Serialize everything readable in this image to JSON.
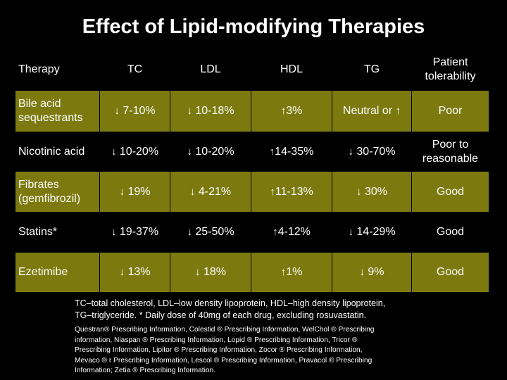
{
  "title": "Effect of Lipid-modifying Therapies",
  "colors": {
    "background": "#000000",
    "olive_row": "#7c7a0f",
    "text": "#ffffff"
  },
  "arrows": {
    "down": "↓",
    "up": "↑"
  },
  "table": {
    "headers": {
      "therapy": "Therapy",
      "tc": "TC",
      "ldl": "LDL",
      "hdl": "HDL",
      "tg": "TG",
      "tolerability_1": "Patient",
      "tolerability_2": "tolerability"
    },
    "rows": [
      {
        "therapy_1": "Bile acid",
        "therapy_2": "sequestrants",
        "tc": "7-10%",
        "ldl": "10-18%",
        "hdl": "3%",
        "tg": "Neutral or",
        "tolerability_1": "Poor",
        "tolerability_2": ""
      },
      {
        "therapy_1": "Nicotinic acid",
        "therapy_2": "",
        "tc": "10-20%",
        "ldl": "10-20%",
        "hdl": "14-35%",
        "tg": "30-70%",
        "tolerability_1": "Poor to",
        "tolerability_2": "reasonable"
      },
      {
        "therapy_1": "Fibrates",
        "therapy_2": "(gemfibrozil)",
        "tc": "19%",
        "ldl": "4-21%",
        "hdl": "11-13%",
        "tg": "30%",
        "tolerability_1": "Good",
        "tolerability_2": ""
      },
      {
        "therapy_1": "Statins*",
        "therapy_2": "",
        "tc": "19-37%",
        "ldl": "25-50%",
        "hdl": "4-12%",
        "tg": "14-29%",
        "tolerability_1": "Good",
        "tolerability_2": ""
      },
      {
        "therapy_1": "Ezetimibe",
        "therapy_2": "",
        "tc": "13%",
        "ldl": "18%",
        "hdl": "1%",
        "tg": "9%",
        "tolerability_1": "Good",
        "tolerability_2": ""
      }
    ]
  },
  "footnote_line1": "TC–total cholesterol, LDL–low density lipoprotein, HDL–high density lipoprotein,",
  "footnote_line2": "TG–triglyceride. * Daily dose of 40mg of each drug, excluding rosuvastatin.",
  "references": [
    "Questran® Prescribing Information, Colestid ® Prescribing Information, WelChol ® Prescribing",
    "information, Niaspan ® Prescribing Information, Lopid ® Prescribing Information, Tricor ®",
    "Prescribing Information, Lipitor ® Prescribing Information, Zocor ® Prescribing Information,",
    "Mevaco ® r Prescribing Information, Lescol ® Prescribing Information, Pravacol ® Prescribing",
    "Information; Zetia ® Prescribing Information."
  ]
}
